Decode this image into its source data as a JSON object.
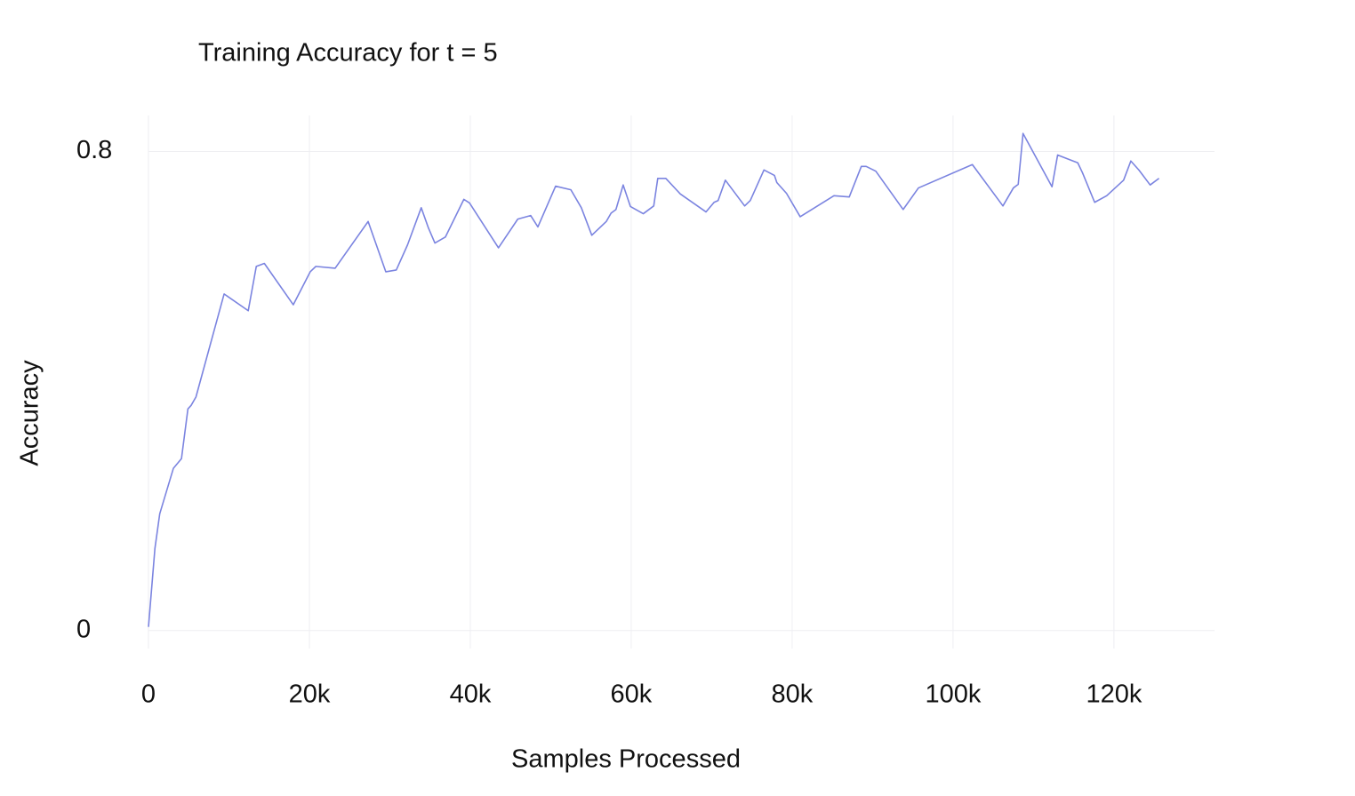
{
  "chart_data": {
    "type": "line",
    "title": "Training Accuracy for t = 5",
    "x_label": "Samples Processed",
    "y_label": "Accuracy",
    "xlim": [
      0,
      132500
    ],
    "ylim": [
      -0.03,
      0.86
    ],
    "xticks": [
      0,
      {
        "value": 20000,
        "label": "20k"
      },
      {
        "value": 40000,
        "label": "40k"
      },
      {
        "value": 60000,
        "label": "60k"
      },
      {
        "value": 80000,
        "label": "80k"
      },
      {
        "value": 100000,
        "label": "100k"
      },
      {
        "value": 120000,
        "label": "120k"
      }
    ],
    "yticks": [
      0,
      0.8
    ],
    "grid": true,
    "series": [
      {
        "name": "Accuracy",
        "color": "#7b84e0",
        "x": [
          0,
          800,
          1400,
          3100,
          4100,
          4900,
          5300,
          5900,
          9400,
          12400,
          13400,
          14400,
          18000,
          20100,
          20800,
          23200,
          27300,
          29500,
          30800,
          32200,
          33900,
          34800,
          35600,
          36900,
          39200,
          39900,
          43500,
          45900,
          47500,
          48400,
          50600,
          52500,
          53800,
          55100,
          56900,
          57500,
          58100,
          59000,
          59900,
          61500,
          62800,
          63300,
          64300,
          66100,
          69300,
          70300,
          70800,
          71700,
          74100,
          74800,
          76500,
          77800,
          78100,
          79300,
          81000,
          85200,
          87100,
          88600,
          89200,
          90400,
          93800,
          95700,
          102400,
          106200,
          107500,
          108100,
          108700,
          112300,
          113000,
          115500,
          116100,
          117600,
          119100,
          121200,
          122100,
          123100,
          124500,
          125600
        ],
        "values": [
          0.006,
          0.137,
          0.195,
          0.271,
          0.287,
          0.37,
          0.376,
          0.39,
          0.562,
          0.534,
          0.608,
          0.613,
          0.544,
          0.599,
          0.608,
          0.605,
          0.683,
          0.599,
          0.602,
          0.644,
          0.706,
          0.672,
          0.647,
          0.657,
          0.72,
          0.714,
          0.639,
          0.687,
          0.693,
          0.674,
          0.742,
          0.736,
          0.706,
          0.66,
          0.683,
          0.697,
          0.703,
          0.744,
          0.708,
          0.696,
          0.709,
          0.755,
          0.755,
          0.729,
          0.699,
          0.715,
          0.718,
          0.752,
          0.709,
          0.718,
          0.769,
          0.76,
          0.748,
          0.73,
          0.691,
          0.726,
          0.724,
          0.775,
          0.775,
          0.767,
          0.703,
          0.739,
          0.778,
          0.709,
          0.739,
          0.745,
          0.83,
          0.741,
          0.794,
          0.781,
          0.764,
          0.715,
          0.726,
          0.752,
          0.784,
          0.769,
          0.744,
          0.755
        ]
      }
    ]
  }
}
